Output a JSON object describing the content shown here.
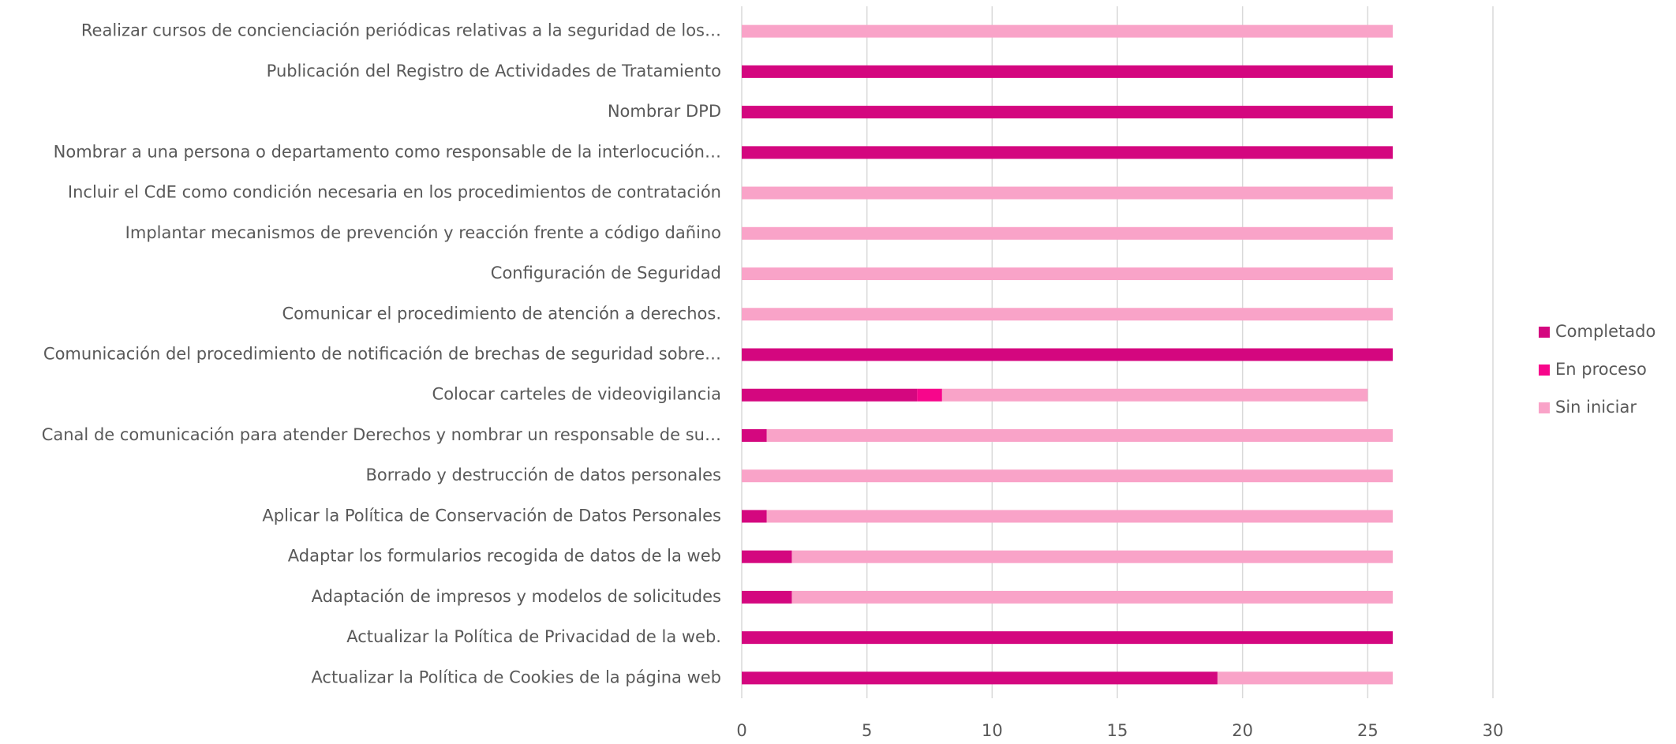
{
  "chart_data": {
    "type": "stacked_barh",
    "categories": [
      "Realizar cursos de concienciación periódicas relativas a la seguridad de los…",
      "Publicación del Registro de Actividades de Tratamiento",
      "Nombrar DPD",
      "Nombrar a una persona o departamento como responsable de la interlocución…",
      "Incluir el CdE como condición necesaria en los procedimientos de contratación",
      "Implantar mecanismos de prevención y reacción frente a código dañino",
      "Configuración de Seguridad",
      "Comunicar el procedimiento de atención a derechos.",
      "Comunicación del procedimiento de notificación de brechas de seguridad sobre…",
      "Colocar carteles de videovigilancia",
      "Canal de comunicación para atender Derechos y nombrar un responsable de su…",
      "Borrado y destrucción de datos personales",
      "Aplicar la Política de Conservación de Datos Personales",
      "Adaptar los formularios recogida de datos de la web",
      "Adaptación de impresos y modelos de solicitudes",
      "Actualizar la Política de Privacidad de la web.",
      "Actualizar la Política de Cookies de la página web"
    ],
    "series": [
      {
        "name": "Completado",
        "color": "#d4077f",
        "values": [
          0,
          26,
          26,
          26,
          0,
          0,
          0,
          0,
          26,
          7,
          1,
          0,
          1,
          2,
          2,
          26,
          19
        ]
      },
      {
        "name": "En proceso",
        "color": "#f7068b",
        "values": [
          0,
          0,
          0,
          0,
          0,
          0,
          0,
          0,
          0,
          1,
          0,
          0,
          0,
          0,
          0,
          0,
          0
        ]
      },
      {
        "name": "Sin iniciar",
        "color": "#f9a3c8",
        "values": [
          26,
          0,
          0,
          0,
          26,
          26,
          26,
          26,
          0,
          17,
          25,
          26,
          25,
          24,
          24,
          0,
          7
        ]
      }
    ],
    "xlim": [
      0,
      30
    ],
    "xticks": [
      0,
      5,
      10,
      15,
      20,
      25,
      30
    ],
    "grid": true,
    "legend": "right"
  }
}
